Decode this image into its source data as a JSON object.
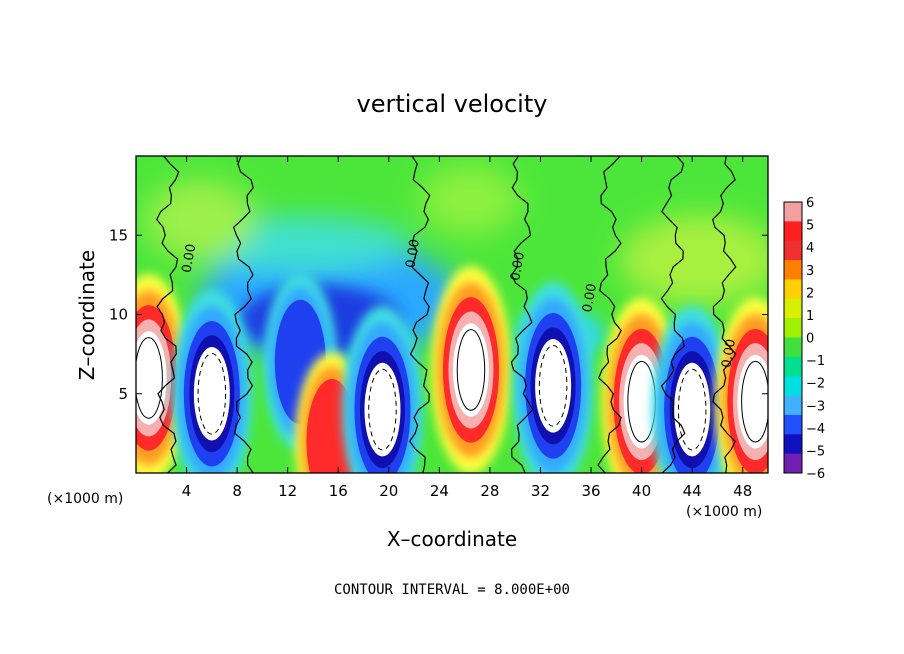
{
  "chart_data": {
    "type": "heatmap",
    "title": "vertical velocity",
    "xlabel": "X–coordinate",
    "ylabel": "Z–coordinate",
    "x_unit_left": "(×1000 m)",
    "x_unit_right": "(×1000 m)",
    "xlim": [
      0,
      50
    ],
    "ylim": [
      0,
      20
    ],
    "x_ticks": [
      4,
      8,
      12,
      16,
      20,
      24,
      28,
      32,
      36,
      40,
      44,
      48
    ],
    "x_tick_labels": [
      "4",
      "8",
      "12",
      "16",
      "20",
      "24",
      "28",
      "32",
      "36",
      "40",
      "44",
      "48"
    ],
    "y_ticks": [
      5,
      10,
      15
    ],
    "y_tick_labels": [
      "5",
      "10",
      "15"
    ],
    "colorbar": {
      "min": -6,
      "max": 6,
      "tick_values": [
        6,
        5,
        4,
        3,
        2,
        1,
        0,
        -1,
        -2,
        -3,
        -4,
        -5,
        -6
      ],
      "tick_labels": [
        "6",
        "5",
        "4",
        "3",
        "2",
        "1",
        "0",
        "−1",
        "−2",
        "−3",
        "−4",
        "−5",
        "−6"
      ],
      "colors": [
        "#f4a0a0",
        "#ff2020",
        "#f03030",
        "#ff8000",
        "#ffd000",
        "#d8f000",
        "#a0f000",
        "#40e040",
        "#00e090",
        "#00e0e0",
        "#40b0ff",
        "#2050ff",
        "#1010c0",
        "#7020b0"
      ]
    },
    "features": [
      {
        "kind": "updraft",
        "x": 1,
        "z": 6,
        "peak": 8
      },
      {
        "kind": "downdraft",
        "x": 6,
        "z": 5,
        "peak": -8
      },
      {
        "kind": "downdraft",
        "x": 13,
        "z": 7,
        "peak": -5
      },
      {
        "kind": "updraft",
        "x": 15.5,
        "z": 2,
        "peak": 5
      },
      {
        "kind": "downdraft",
        "x": 19.5,
        "z": 4,
        "peak": -8
      },
      {
        "kind": "updraft",
        "x": 26.5,
        "z": 6.5,
        "peak": 8
      },
      {
        "kind": "downdraft",
        "x": 33,
        "z": 5.5,
        "peak": -8
      },
      {
        "kind": "updraft",
        "x": 40,
        "z": 4.5,
        "peak": 8
      },
      {
        "kind": "downdraft",
        "x": 44,
        "z": 4,
        "peak": -8
      },
      {
        "kind": "updraft",
        "x": 49,
        "z": 4.5,
        "peak": 8
      }
    ],
    "contour_labels": [
      "0.00",
      "0.00",
      "0.00",
      "0.00",
      "0.00"
    ],
    "contour_interval_text": "CONTOUR INTERVAL = 8.000E+00"
  }
}
